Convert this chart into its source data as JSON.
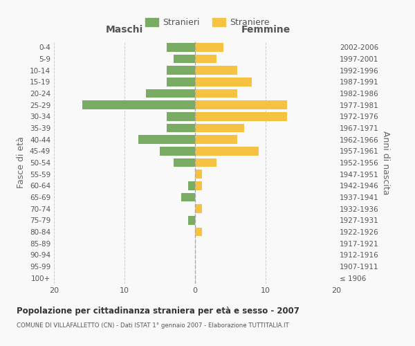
{
  "age_groups": [
    "100+",
    "95-99",
    "90-94",
    "85-89",
    "80-84",
    "75-79",
    "70-74",
    "65-69",
    "60-64",
    "55-59",
    "50-54",
    "45-49",
    "40-44",
    "35-39",
    "30-34",
    "25-29",
    "20-24",
    "15-19",
    "10-14",
    "5-9",
    "0-4"
  ],
  "birth_years": [
    "≤ 1906",
    "1907-1911",
    "1912-1916",
    "1917-1921",
    "1922-1926",
    "1927-1931",
    "1932-1936",
    "1937-1941",
    "1942-1946",
    "1947-1951",
    "1952-1956",
    "1957-1961",
    "1962-1966",
    "1967-1971",
    "1972-1976",
    "1977-1981",
    "1982-1986",
    "1987-1991",
    "1992-1996",
    "1997-2001",
    "2002-2006"
  ],
  "maschi": [
    0,
    0,
    0,
    0,
    0,
    1,
    0,
    2,
    1,
    0,
    3,
    5,
    8,
    4,
    4,
    16,
    7,
    4,
    4,
    3,
    4
  ],
  "femmine": [
    0,
    0,
    0,
    0,
    1,
    0,
    1,
    0,
    1,
    1,
    3,
    9,
    6,
    7,
    13,
    13,
    6,
    8,
    6,
    3,
    4
  ],
  "color_maschi": "#7aab63",
  "color_femmine": "#f5c242",
  "title": "Popolazione per cittadinanza straniera per età e sesso - 2007",
  "subtitle": "COMUNE DI VILLAFALLETTO (CN) - Dati ISTAT 1° gennaio 2007 - Elaborazione TUTTITALIA.IT",
  "xlabel_left": "Maschi",
  "xlabel_right": "Femmine",
  "ylabel_left": "Fasce di età",
  "ylabel_right": "Anni di nascita",
  "legend_maschi": "Stranieri",
  "legend_femmine": "Straniere",
  "xlim": 20,
  "background_color": "#f9f9f9",
  "grid_color": "#cccccc"
}
